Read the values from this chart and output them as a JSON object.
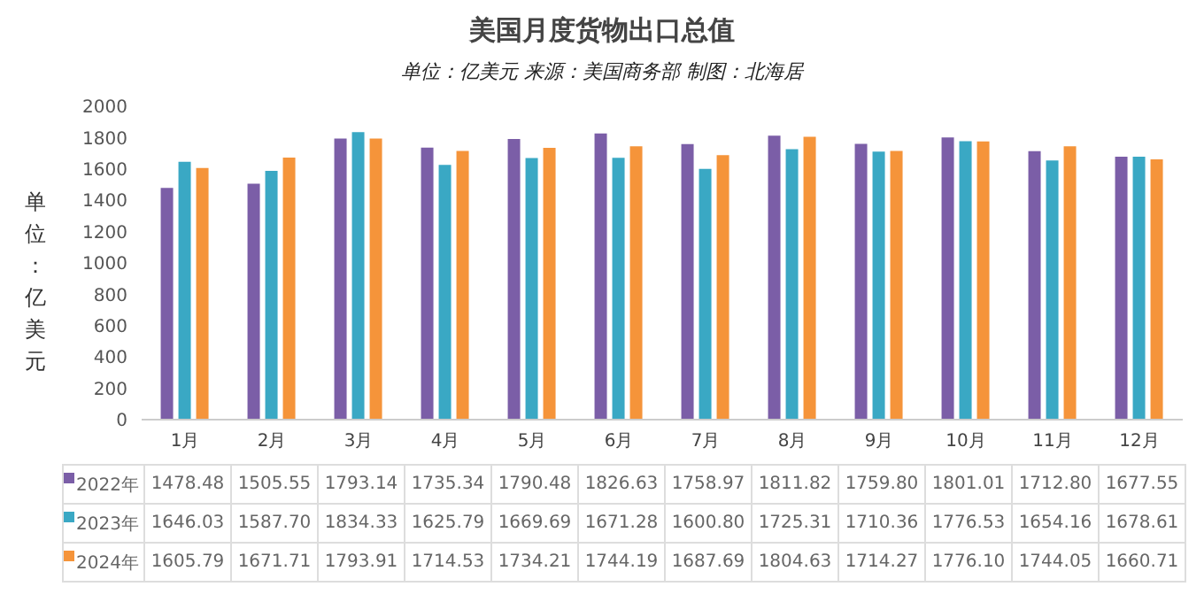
{
  "chart_data": {
    "type": "bar",
    "title": "美国月度货物出口总值",
    "subtitle": "单位：亿美元 来源：美国商务部 制图：北海居",
    "ylabel": "单位：亿美元",
    "categories": [
      "1月",
      "2月",
      "3月",
      "4月",
      "5月",
      "6月",
      "7月",
      "8月",
      "9月",
      "10月",
      "11月",
      "12月"
    ],
    "series": [
      {
        "name": "2022年",
        "color": "#7b5ea7",
        "values": [
          1478.48,
          1505.55,
          1793.14,
          1735.34,
          1790.48,
          1826.63,
          1758.97,
          1811.82,
          1759.8,
          1801.01,
          1712.8,
          1677.55
        ],
        "value_labels": [
          "1478.48",
          "1505.55",
          "1793.14",
          "1735.34",
          "1790.48",
          "1826.63",
          "1758.97",
          "1811.82",
          "1759.80",
          "1801.01",
          "1712.80",
          "1677.55"
        ]
      },
      {
        "name": "2023年",
        "color": "#3aa8c4",
        "values": [
          1646.03,
          1587.7,
          1834.33,
          1625.79,
          1669.69,
          1671.28,
          1600.8,
          1725.31,
          1710.36,
          1776.53,
          1654.16,
          1678.61
        ],
        "value_labels": [
          "1646.03",
          "1587.70",
          "1834.33",
          "1625.79",
          "1669.69",
          "1671.28",
          "1600.80",
          "1725.31",
          "1710.36",
          "1776.53",
          "1654.16",
          "1678.61"
        ]
      },
      {
        "name": "2024年",
        "color": "#f5943a",
        "values": [
          1605.79,
          1671.71,
          1793.91,
          1714.53,
          1734.21,
          1744.19,
          1687.69,
          1804.63,
          1714.27,
          1776.1,
          1744.05,
          1660.71
        ],
        "value_labels": [
          "1605.79",
          "1671.71",
          "1793.91",
          "1714.53",
          "1734.21",
          "1744.19",
          "1687.69",
          "1804.63",
          "1714.27",
          "1776.10",
          "1744.05",
          "1660.71"
        ]
      }
    ],
    "ylim": [
      0,
      2000
    ],
    "yticks": [
      0,
      200,
      400,
      600,
      800,
      1000,
      1200,
      1400,
      1600,
      1800,
      2000
    ],
    "grid": false,
    "legend": "bottom"
  }
}
